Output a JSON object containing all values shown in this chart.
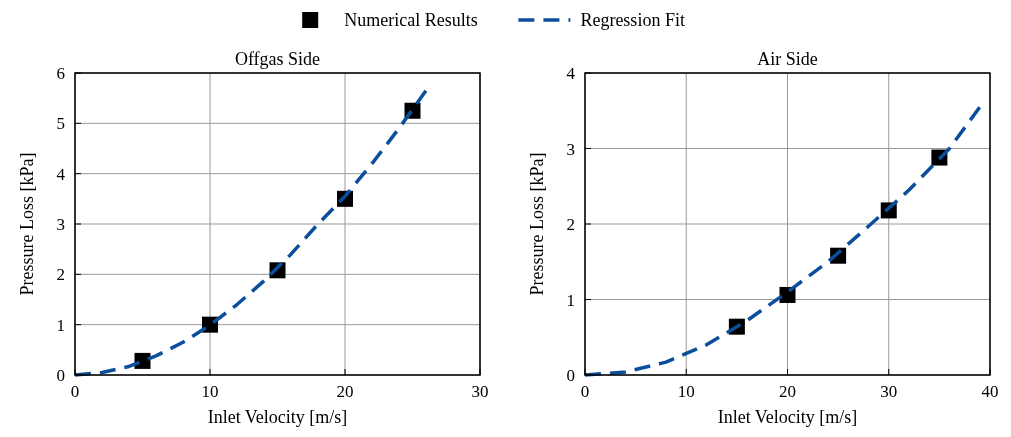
{
  "chart_data": [
    {
      "type": "scatter",
      "title": "Offgas Side",
      "xlabel": "Inlet Velocity [m/s]",
      "ylabel": "Pressure Loss [kPa]",
      "xlim": [
        0,
        30
      ],
      "xticks": [
        0,
        10,
        20,
        30
      ],
      "ylim": [
        0,
        6
      ],
      "yticks": [
        0,
        1,
        2,
        3,
        4,
        5,
        6
      ],
      "grid": true,
      "legend": "top",
      "series": [
        {
          "name": "Numerical Results",
          "marker": "square",
          "color": "#000000",
          "x": [
            5,
            10,
            15,
            20,
            25
          ],
          "values": [
            0.28,
            1.0,
            2.08,
            3.5,
            5.25
          ]
        },
        {
          "name": "Regression Fit",
          "type": "line",
          "marker": "none",
          "line_style": "dashed",
          "color": "#0b4f9c",
          "x": [
            0,
            2,
            4,
            6,
            8,
            10,
            12,
            14,
            16,
            18,
            20,
            22,
            24,
            26
          ],
          "values": [
            0,
            0.05,
            0.17,
            0.38,
            0.65,
            0.99,
            1.4,
            1.87,
            2.4,
            3.0,
            3.55,
            4.2,
            4.9,
            5.65
          ]
        }
      ]
    },
    {
      "type": "scatter",
      "title": "Air Side",
      "xlabel": "Inlet Velocity [m/s]",
      "ylabel": "Pressure Loss [kPa]",
      "xlim": [
        0,
        40
      ],
      "xticks": [
        0,
        10,
        20,
        30,
        40
      ],
      "ylim": [
        0,
        4
      ],
      "yticks": [
        0,
        1,
        2,
        3,
        4
      ],
      "grid": true,
      "series": [
        {
          "marker": "square",
          "color": "#000000",
          "x": [
            15,
            20,
            25,
            30,
            35
          ],
          "values": [
            0.64,
            1.06,
            1.58,
            2.18,
            2.88
          ]
        },
        {
          "type": "line",
          "marker": "none",
          "line_style": "dashed",
          "color": "#0b4f9c",
          "x": [
            0,
            4,
            8,
            12,
            16,
            20,
            24,
            28,
            32,
            36,
            39
          ],
          "values": [
            0,
            0.04,
            0.17,
            0.4,
            0.72,
            1.1,
            1.5,
            1.97,
            2.45,
            3.0,
            3.55
          ]
        }
      ]
    }
  ]
}
